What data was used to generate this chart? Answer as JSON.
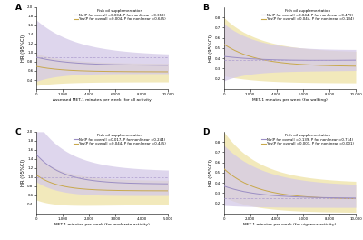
{
  "panels": [
    {
      "label": "A",
      "xlabel": "Assessed MET-1 minutes per week (for all activity)",
      "ylabel": "HR (95%CI)",
      "xlim": [
        0,
        10000
      ],
      "ylim": [
        0.2,
        2.0
      ],
      "yticks": [
        0.4,
        0.6,
        0.8,
        1.0,
        1.2,
        1.4,
        1.6,
        1.8,
        2.0
      ],
      "xticks": [
        0,
        2000,
        4000,
        6000,
        8000,
        10000
      ],
      "hline": 0.9,
      "legend_title": "Fish oil supplementation",
      "legend1": "No(P for overall =0.004, P for nonlinear =0.313)",
      "legend2": "Yes(P for overall =0.004, P for nonlinear =0.645)",
      "curve1_color": "#9b8ec4",
      "curve2_color": "#c8a84b",
      "ci1_color": "#d4c9e8",
      "ci2_color": "#f0e6b0"
    },
    {
      "label": "B",
      "xlabel": "MET-1 minutes per week (for walking)",
      "ylabel": "HR (95%CI)",
      "xlim": [
        0,
        10000
      ],
      "ylim": [
        0.1,
        0.9
      ],
      "yticks": [
        0.2,
        0.3,
        0.4,
        0.5,
        0.6,
        0.7,
        0.8
      ],
      "xticks": [
        0,
        2000,
        4000,
        6000,
        8000,
        10000
      ],
      "hline": 0.38,
      "legend_title": "Fish oil supplementation",
      "legend1": "No(P for overall =0.044, P for nonlinear =0.479)",
      "legend2": "Yes(P for overall =0.044, P for nonlinear =0.134)",
      "curve1_color": "#9b8ec4",
      "curve2_color": "#c8a84b",
      "ci1_color": "#d4c9e8",
      "ci2_color": "#f0e6b0"
    },
    {
      "label": "C",
      "xlabel": "MET-1 minutes per week (for moderate activity)",
      "ylabel": "HR (95%CI)",
      "xlim": [
        0,
        5000
      ],
      "ylim": [
        0.2,
        2.0
      ],
      "yticks": [
        0.4,
        0.6,
        0.8,
        1.0,
        1.2,
        1.4,
        1.6,
        1.8,
        2.0
      ],
      "xticks": [
        0,
        1000,
        2000,
        3000,
        4000,
        5000
      ],
      "hline": 1.0,
      "legend_title": "Fish oil supplementation",
      "legend1": "No(P for overall =0.017, P for nonlinear =0.244)",
      "legend2": "Yes(P for overall =0.044, P for nonlinear =0.445)",
      "curve1_color": "#9b8ec4",
      "curve2_color": "#c8a84b",
      "ci1_color": "#d4c9e8",
      "ci2_color": "#f0e6b0"
    },
    {
      "label": "D",
      "xlabel": "MET-1 minutes per week (for vigorous activity)",
      "ylabel": "HR (95%CI)",
      "xlim": [
        0,
        10000
      ],
      "ylim": [
        0.1,
        0.9
      ],
      "yticks": [
        0.2,
        0.3,
        0.4,
        0.5,
        0.6,
        0.7,
        0.8
      ],
      "xticks": [
        0,
        2000,
        4000,
        6000,
        8000,
        10000
      ],
      "hline": 0.25,
      "legend_title": "Fish oil supplementation",
      "legend1": "No(P for overall =0.139, P for nonlinear =0.714)",
      "legend2": "Yes(P for overall =0.001, P for nonlinear =0.001)",
      "curve1_color": "#9b8ec4",
      "curve2_color": "#c8a84b",
      "ci1_color": "#d4c9e8",
      "ci2_color": "#f0e6b0"
    }
  ],
  "bg_color": "#ffffff",
  "panel_bg": "#ffffff"
}
